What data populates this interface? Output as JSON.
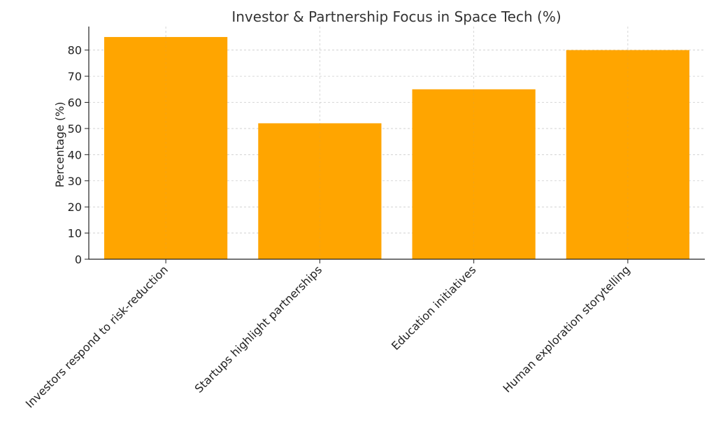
{
  "chart_data": {
    "type": "bar",
    "title": "Investor & Partnership Focus in Space Tech (%)",
    "xlabel": "",
    "ylabel": "Percentage (%)",
    "categories": [
      "Investors respond to risk-reduction",
      "Startups highlight partnerships",
      "Education initiatives",
      "Human exploration storytelling"
    ],
    "values": [
      85,
      52,
      65,
      80
    ],
    "ylim": [
      0,
      89
    ],
    "yticks": [
      0,
      10,
      20,
      30,
      40,
      50,
      60,
      70,
      80
    ],
    "grid": true,
    "legend": "none",
    "bar_color": "#FFA500",
    "grid_color": "#cccccc",
    "axis_color": "#222222"
  }
}
